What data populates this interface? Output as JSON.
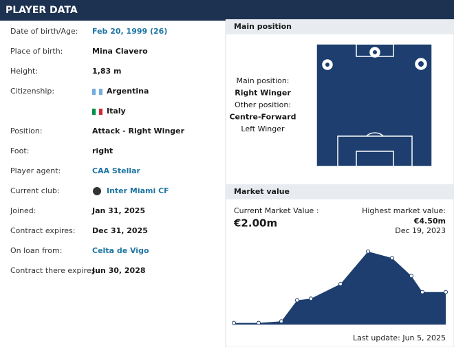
{
  "header": {
    "title": "PLAYER DATA"
  },
  "rows": [
    {
      "label": "Date of birth/Age:",
      "value": "Feb 20, 1999 (26)"
    },
    {
      "label": "Place of birth:",
      "value": "Mina Clavero"
    },
    {
      "label": "Height:",
      "value": "1,83 m"
    },
    {
      "label": "Citizenship:",
      "value": [
        "Argentina",
        "Italy"
      ]
    },
    {
      "label": "Position:",
      "value": "Attack - Right Winger"
    },
    {
      "label": "Foot:",
      "value": "right"
    },
    {
      "label": "Player agent:",
      "value": "CAA Stellar"
    },
    {
      "label": "Current club:",
      "value": "Inter Miami CF"
    },
    {
      "label": "Joined:",
      "value": "Jan 31, 2025"
    },
    {
      "label": "Contract expires:",
      "value": "Dec 31, 2025"
    },
    {
      "label": "On loan from:",
      "value": "Celta de Vigo"
    },
    {
      "label": "Contract there expires:",
      "value": "Jun 30, 2028"
    }
  ],
  "main_position": {
    "title": "Main position",
    "lines": [
      "Main position:",
      "Right Winger",
      "Other position:",
      "Centre-Forward",
      "Left Winger"
    ]
  },
  "market_value": {
    "title": "Market value",
    "current_label": "Current Market Value :",
    "current": "€2.00m",
    "highest_label": "Highest market value:",
    "highest": "€4.50m",
    "highest_date": "Dec 19, 2023",
    "values": [
      0.1,
      0.1,
      0.2,
      1.5,
      1.6,
      2.5,
      4.5,
      4.1,
      3.0,
      2.0,
      2.0
    ],
    "last_update": "Last update: Jun 5, 2025"
  }
}
